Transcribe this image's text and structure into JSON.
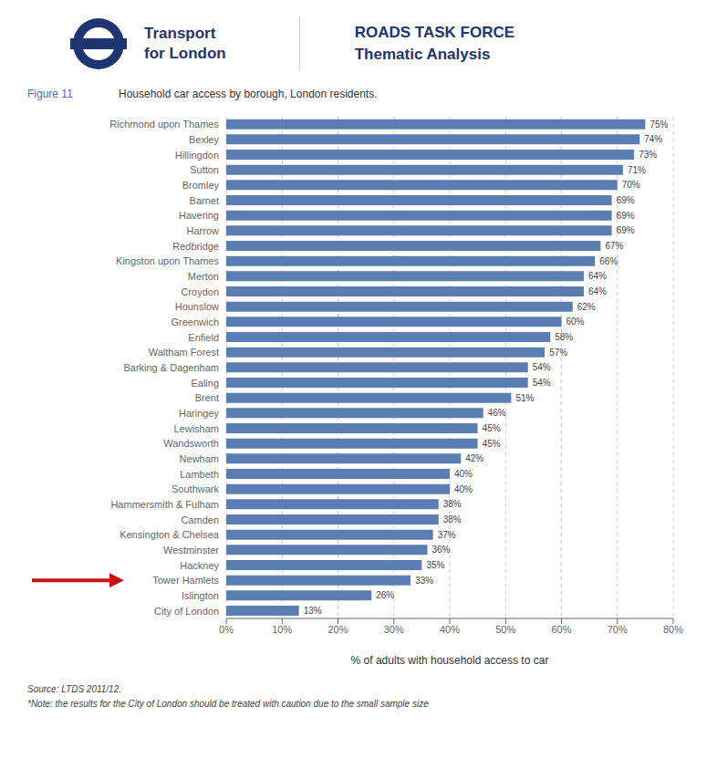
{
  "chart_data": {
    "type": "bar",
    "orientation": "horizontal",
    "title": "Household car access by borough, London residents.",
    "categories": [
      "Richmond upon Thames",
      "Bexley",
      "Hillingdon",
      "Sutton",
      "Bromley",
      "Barnet",
      "Havering",
      "Harrow",
      "Redbridge",
      "Kingston upon Thames",
      "Merton",
      "Croydon",
      "Hounslow",
      "Greenwich",
      "Enfield",
      "Waltham Forest",
      "Barking & Dagenham",
      "Ealing",
      "Brent",
      "Haringey",
      "Lewisham",
      "Wandsworth",
      "Newham",
      "Lambeth",
      "Southwark",
      "Hammersmith & Fulham",
      "Camden",
      "Kensington & Chelsea",
      "Westminster",
      "Hackney",
      "Tower Hamlets",
      "Islington",
      "City of London"
    ],
    "values": [
      75,
      74,
      73,
      71,
      70,
      69,
      69,
      69,
      67,
      66,
      64,
      64,
      62,
      60,
      58,
      57,
      54,
      54,
      51,
      46,
      45,
      45,
      42,
      40,
      40,
      38,
      38,
      37,
      36,
      35,
      33,
      26,
      13
    ],
    "value_labels": [
      "75%",
      "74%",
      "73%",
      "71%",
      "70%",
      "69%",
      "69%",
      "69%",
      "67%",
      "66%",
      "64%",
      "64%",
      "62%",
      "60%",
      "58%",
      "57%",
      "54%",
      "54%",
      "51%",
      "46%",
      "45%",
      "45%",
      "42%",
      "40%",
      "40%",
      "38%",
      "38%",
      "37%",
      "36%",
      "35%",
      "33%",
      "26%",
      "13%"
    ],
    "data_labels": true,
    "color": "#5b7db1",
    "xlabel": "% of adults with household access to car",
    "xlim": [
      0,
      80
    ],
    "xticks": [
      {
        "value": 0,
        "label": "0%"
      },
      {
        "value": 10,
        "label": "10%"
      },
      {
        "value": 20,
        "label": "20%"
      },
      {
        "value": 30,
        "label": "30%"
      },
      {
        "value": 40,
        "label": "40%"
      },
      {
        "value": 50,
        "label": "50%"
      },
      {
        "value": 60,
        "label": "60%"
      },
      {
        "value": 70,
        "label": "70%"
      },
      {
        "value": 80,
        "label": "80%"
      }
    ],
    "grid": true,
    "annotations": [
      {
        "text": "Transport",
        "color": "#1f3473"
      },
      {
        "text": "for London",
        "color": "#1f3473"
      },
      {
        "text": "ROADS TASK FORCE",
        "color": "#1f3473"
      },
      {
        "text": "Thematic Analysis",
        "color": "#1f3473"
      },
      {
        "text": "Figure 11",
        "color": "#4472c4"
      },
      {
        "text": "Source: LTDS 2011/12."
      },
      {
        "text": "*Note: the results for the City of London should be treated with caution due to the small sample size"
      },
      {
        "arrow_to": "Tower Hamlets",
        "color": "#cc1111"
      }
    ]
  }
}
